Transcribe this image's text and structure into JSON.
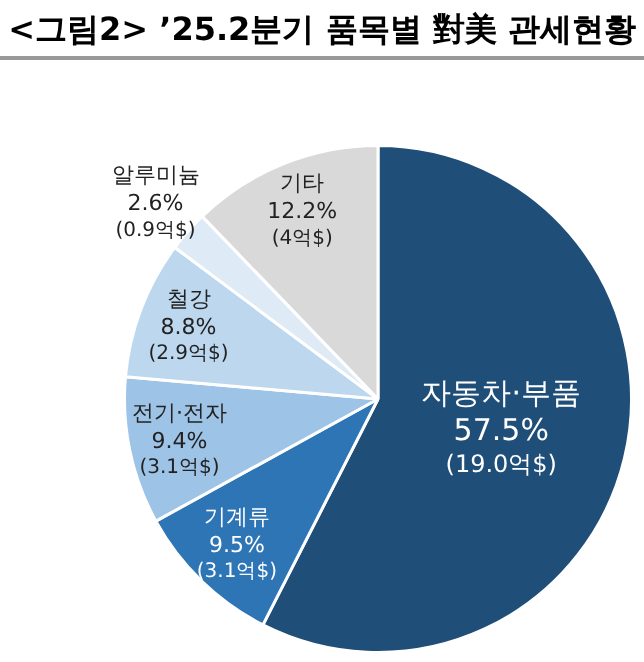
{
  "chart_data": {
    "type": "pie",
    "title": "<그림2> ’25.2분기 품목별 對美 관세현황",
    "categories": [
      "자동차·부품",
      "기계류",
      "전기·전자",
      "철강",
      "알루미늄",
      "기타"
    ],
    "values": [
      57.5,
      9.5,
      9.4,
      8.8,
      2.6,
      12.2
    ],
    "colors": [
      "#1f4e79",
      "#2e75b6",
      "#9dc3e6",
      "#bdd7ee",
      "#deebf7",
      "#d9d9d9"
    ],
    "value_labels": [
      "57.5%\n(19.0억$)",
      "9.5%\n(3.1억$)",
      "9.4%\n(3.1억$)",
      "8.8%\n(2.9억$)",
      "2.6%\n(0.9억$)",
      "12.2%\n(4억$)"
    ],
    "legend": false
  }
}
